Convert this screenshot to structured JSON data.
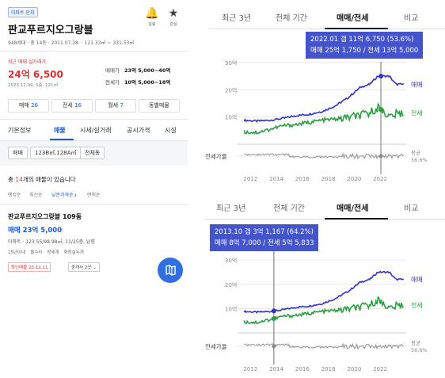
{
  "left": {
    "tag": "아파트 단지",
    "title": "판교푸르지오그랑블",
    "subtitle": "948세대 · 총 14동 · 2011.07.28. · 121.33㎡ ~ 331.53㎡",
    "icons": [
      {
        "icon": "bell-icon",
        "label": "알림"
      },
      {
        "icon": "star-icon",
        "label": "관심"
      }
    ],
    "recent_label": "최근 매매 실거래가",
    "recent_price": "24억 6,500",
    "recent_detail": "2023.11.09, 5층, 121㎡",
    "sale_range_label": "매매가",
    "sale_range": "23억 5,000~40억",
    "jeonse_range_label": "전세가",
    "jeonse_range": "10억 5,000~18억",
    "buttons": [
      {
        "label": "매매",
        "count": "26"
      },
      {
        "label": "전세",
        "count": "16"
      },
      {
        "label": "월세",
        "count": "7"
      },
      {
        "label": "동별매물",
        "count": ""
      }
    ],
    "tabs": [
      "기본정보",
      "매물",
      "시세/실거래",
      "공시가격",
      "시설"
    ],
    "filters": [
      "매매",
      "123B㎡,128A㎡",
      "전체동"
    ],
    "count_pre": "총 ",
    "count_num": "14",
    "count_post": "개의 매물이 있습니다",
    "sorts": [
      "랭킹순",
      "최신순",
      "낮은가격순↓",
      "면적순"
    ],
    "listing": {
      "title": "판교푸르지오그랑블 109동",
      "type": "매매",
      "price": "23억 5,000",
      "spec": "아파트 · 123.55/98.98㎡, 11/25층, 남향",
      "tags": [
        "15년이내",
        "올수리",
        "방세개",
        "화장실두개"
      ],
      "confirmed": "확인매물 23.12.11",
      "agent": "중개사 2곳"
    },
    "map_icon": "map-icon"
  },
  "top": {
    "tabs": [
      "최근 3년",
      "전체 기간",
      "매매/전세",
      "비교"
    ],
    "active_tab": 2,
    "tooltip": {
      "line1": "2022.01  갭 11억 6,750 (53.6%)",
      "line2": "매매 25억 1,750 / 전세 13억 5,000"
    },
    "marker_year": 2022.05
  },
  "bottom": {
    "tabs": [
      "최근 3년",
      "전체 기간",
      "매매/전세",
      "비교"
    ],
    "active_tab": 2,
    "tooltip": {
      "line1": "2013.10  갭 3억 1,167 (64.2%)",
      "line2": "매매 8억 7,000 / 전세 5억 5,833"
    },
    "marker_year": 2013.8
  },
  "chart_data": {
    "type": "line",
    "x_ticks": [
      "2012",
      "2014",
      "2016",
      "2018",
      "2020",
      "2022"
    ],
    "y_ticks": [
      "10억",
      "20억",
      "30억"
    ],
    "ylim": [
      0,
      32
    ],
    "xlim": [
      2011,
      2024
    ],
    "series": [
      {
        "name": "매매",
        "color": "#3333cc",
        "x": [
          2011.5,
          2012.5,
          2013.5,
          2014.5,
          2015.5,
          2016.5,
          2017.5,
          2018.5,
          2019.5,
          2020.5,
          2021.2,
          2021.8,
          2022.3,
          2022.7,
          2023.2,
          2023.8
        ],
        "values": [
          8.8,
          8.5,
          8.8,
          9.5,
          10.5,
          11,
          12,
          14,
          17,
          21,
          22,
          25,
          25,
          25,
          22,
          22
        ]
      },
      {
        "name": "전세",
        "color": "#2e9e44",
        "x": [
          2011.5,
          2012.5,
          2013.5,
          2014.5,
          2015.5,
          2016.5,
          2017.5,
          2018.5,
          2019.5,
          2020.5,
          2021.2,
          2021.8,
          2022.3,
          2022.7,
          2023.2,
          2023.8
        ],
        "values": [
          4.5,
          4.3,
          5.5,
          6.8,
          7.2,
          8,
          8.8,
          9.2,
          9.8,
          10.5,
          11.5,
          13.5,
          12,
          10,
          11,
          11.5
        ]
      }
    ],
    "ratio_label": "전세가율",
    "avg_label": "평균",
    "avg_value": "56.6%"
  }
}
